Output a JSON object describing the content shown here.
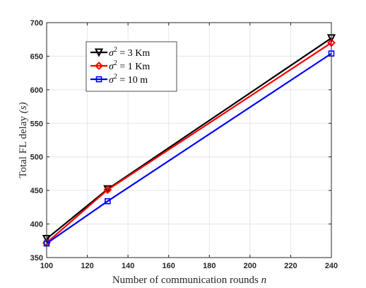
{
  "chart_data": {
    "type": "line",
    "x": [
      100,
      130,
      240
    ],
    "xlim": [
      100,
      240
    ],
    "ylim": [
      350,
      700
    ],
    "xticks": [
      "100",
      "120",
      "140",
      "160",
      "180",
      "200",
      "220",
      "240"
    ],
    "yticks": [
      "350",
      "400",
      "450",
      "500",
      "550",
      "600",
      "650",
      "700"
    ],
    "xticks_values": [
      100,
      120,
      140,
      160,
      180,
      200,
      220,
      240
    ],
    "yticks_values": [
      350,
      400,
      450,
      500,
      550,
      600,
      650,
      700
    ],
    "xlabel": {
      "main": "Number of communication rounds ",
      "var": "n"
    },
    "ylabel": {
      "main": "Total FL delay ",
      "var": "(s)"
    },
    "grid": true,
    "legend_position": "upper-left",
    "series": [
      {
        "name": "σ² = 3 Km",
        "name_sigma": "σ",
        "name_sup": "2",
        "name_rest": " = 3 Km",
        "color": "#000000",
        "marker": "triangle-down",
        "values": [
          378,
          452,
          677
        ]
      },
      {
        "name": "σ² = 1 Km",
        "name_sigma": "σ",
        "name_sup": "2",
        "name_rest": " = 1 Km",
        "color": "#ff0000",
        "marker": "diamond",
        "values": [
          372,
          451,
          670
        ]
      },
      {
        "name": "σ² = 10 m",
        "name_sigma": "σ",
        "name_sup": "2",
        "name_rest": " = 10 m",
        "color": "#0000ff",
        "marker": "square",
        "values": [
          371,
          434,
          654
        ]
      }
    ]
  }
}
